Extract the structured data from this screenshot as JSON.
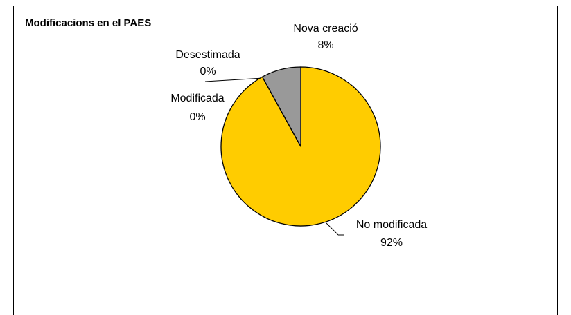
{
  "chart_data": {
    "type": "pie",
    "title": "Modificacions en el PAES",
    "categories": [
      "No modificada",
      "Modificada",
      "Desestimada",
      "Nova creació"
    ],
    "values": [
      92,
      0,
      0,
      8
    ],
    "value_labels": [
      "92%",
      "0%",
      "0%",
      "8%"
    ],
    "colors": [
      "#FFCC00",
      "#9999FF",
      "#993366",
      "#999999"
    ]
  }
}
